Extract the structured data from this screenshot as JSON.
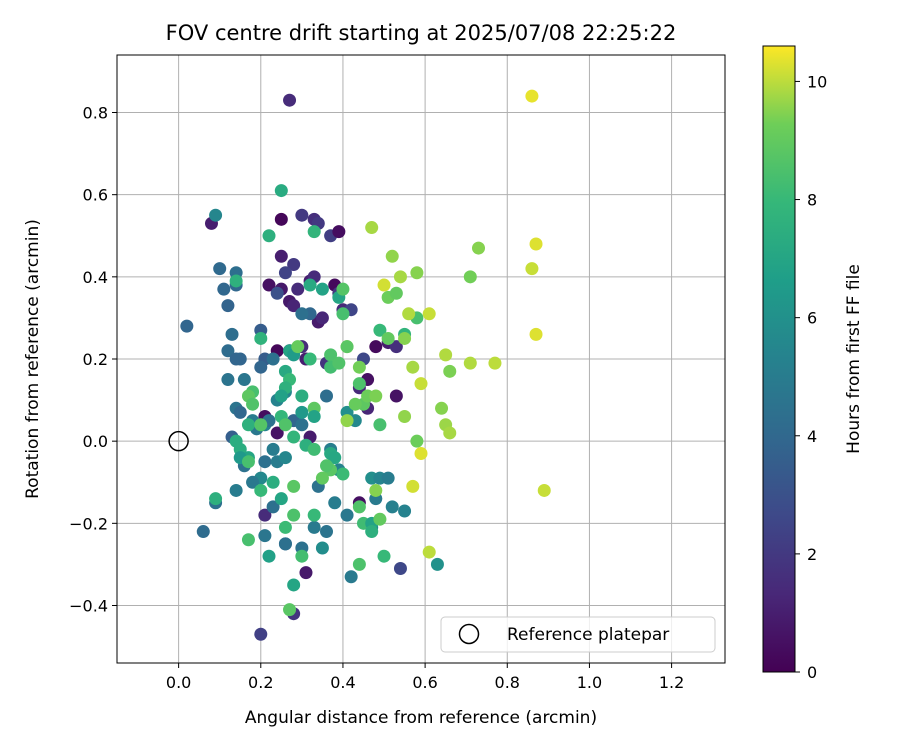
{
  "chart_data": {
    "type": "scatter",
    "title": "FOV centre drift starting at 2025/07/08 22:25:22",
    "xlabel": "Angular distance from reference (arcmin)",
    "ylabel": "Rotation from reference (arcmin)",
    "xlim": [
      -0.15,
      1.33
    ],
    "ylim": [
      -0.54,
      0.94
    ],
    "x_ticks": [
      0.0,
      0.2,
      0.4,
      0.6,
      0.8,
      1.0,
      1.2
    ],
    "x_tick_labels": [
      "0.0",
      "0.2",
      "0.4",
      "0.6",
      "0.8",
      "1.0",
      "1.2"
    ],
    "y_ticks": [
      -0.4,
      -0.2,
      0.0,
      0.2,
      0.4,
      0.6,
      0.8
    ],
    "y_tick_labels": [
      "−0.4",
      "−0.2",
      "0.0",
      "0.2",
      "0.4",
      "0.6",
      "0.8"
    ],
    "grid": true,
    "colormap": "viridis",
    "colorbar": {
      "label": "Hours from first FF file",
      "range": [
        0,
        10.6
      ],
      "ticks": [
        0,
        2,
        4,
        6,
        8,
        10
      ],
      "tick_labels": [
        "0",
        "2",
        "4",
        "6",
        "8",
        "10"
      ]
    },
    "legend": {
      "placement": "lower-right",
      "entries": [
        {
          "label": "Reference platepar",
          "marker": "open-circle"
        }
      ]
    },
    "reference_point": {
      "x": 0.0,
      "y": 0.0
    },
    "points": [
      [
        0.27,
        0.83,
        1.5
      ],
      [
        0.08,
        0.53,
        1.0
      ],
      [
        0.25,
        0.54,
        0.2
      ],
      [
        0.3,
        0.55,
        2.0
      ],
      [
        0.33,
        0.54,
        1.6
      ],
      [
        0.34,
        0.53,
        2.0
      ],
      [
        0.37,
        0.5,
        2.2
      ],
      [
        0.39,
        0.51,
        0.4
      ],
      [
        0.25,
        0.45,
        1.0
      ],
      [
        0.28,
        0.43,
        2.0
      ],
      [
        0.26,
        0.41,
        2.4
      ],
      [
        0.22,
        0.38,
        0.5
      ],
      [
        0.25,
        0.37,
        0.8
      ],
      [
        0.29,
        0.37,
        1.5
      ],
      [
        0.32,
        0.39,
        1.0
      ],
      [
        0.33,
        0.4,
        1.5
      ],
      [
        0.38,
        0.38,
        0.3
      ],
      [
        0.27,
        0.34,
        0.8
      ],
      [
        0.28,
        0.33,
        1.2
      ],
      [
        0.24,
        0.36,
        3.0
      ],
      [
        0.2,
        0.27,
        3.5
      ],
      [
        0.27,
        0.22,
        0.5
      ],
      [
        0.24,
        0.22,
        0.2
      ],
      [
        0.3,
        0.23,
        1.5
      ],
      [
        0.34,
        0.29,
        0.9
      ],
      [
        0.35,
        0.3,
        1.3
      ],
      [
        0.39,
        0.36,
        1.9
      ],
      [
        0.4,
        0.32,
        1.4
      ],
      [
        0.42,
        0.32,
        2.5
      ],
      [
        0.31,
        0.2,
        1.0
      ],
      [
        0.36,
        0.19,
        1.8
      ],
      [
        0.45,
        0.2,
        2.6
      ],
      [
        0.48,
        0.23,
        0.3
      ],
      [
        0.51,
        0.24,
        1.0
      ],
      [
        0.53,
        0.23,
        1.6
      ],
      [
        0.53,
        0.11,
        0.6
      ],
      [
        0.46,
        0.15,
        0.5
      ],
      [
        0.44,
        0.13,
        1.4
      ],
      [
        0.46,
        0.08,
        1.3
      ],
      [
        0.21,
        0.06,
        0.4
      ],
      [
        0.24,
        0.02,
        0.6
      ],
      [
        0.32,
        0.01,
        0.9
      ],
      [
        0.44,
        -0.15,
        0.5
      ],
      [
        0.21,
        -0.18,
        1.5
      ],
      [
        0.31,
        -0.32,
        0.8
      ],
      [
        0.28,
        -0.42,
        1.8
      ],
      [
        0.2,
        -0.47,
        2.3
      ],
      [
        0.54,
        -0.31,
        2.6
      ],
      [
        0.09,
        0.55,
        5.5
      ],
      [
        0.1,
        0.42,
        4.1
      ],
      [
        0.14,
        0.41,
        4.3
      ],
      [
        0.11,
        0.37,
        4.0
      ],
      [
        0.14,
        0.38,
        4.0
      ],
      [
        0.12,
        0.33,
        3.8
      ],
      [
        0.02,
        0.28,
        3.9
      ],
      [
        0.13,
        0.26,
        4.3
      ],
      [
        0.12,
        0.22,
        4.2
      ],
      [
        0.15,
        0.2,
        3.9
      ],
      [
        0.14,
        0.2,
        3.9
      ],
      [
        0.21,
        0.2,
        3.5
      ],
      [
        0.2,
        0.18,
        3.9
      ],
      [
        0.23,
        0.2,
        4.4
      ],
      [
        0.12,
        0.15,
        4.6
      ],
      [
        0.16,
        0.15,
        4.7
      ],
      [
        0.14,
        0.08,
        4.6
      ],
      [
        0.15,
        0.07,
        4.0
      ],
      [
        0.18,
        0.05,
        5.0
      ],
      [
        0.19,
        0.03,
        4.8
      ],
      [
        0.21,
        0.04,
        5.3
      ],
      [
        0.22,
        0.05,
        4.5
      ],
      [
        0.13,
        0.01,
        3.6
      ],
      [
        0.21,
        -0.05,
        4.4
      ],
      [
        0.16,
        -0.06,
        4.5
      ],
      [
        0.24,
        -0.05,
        5.0
      ],
      [
        0.26,
        -0.04,
        5.5
      ],
      [
        0.23,
        -0.02,
        5.0
      ],
      [
        0.28,
        0.05,
        3.9
      ],
      [
        0.3,
        0.04,
        4.5
      ],
      [
        0.24,
        0.1,
        5.3
      ],
      [
        0.26,
        0.12,
        5.5
      ],
      [
        0.2,
        -0.09,
        5.6
      ],
      [
        0.18,
        -0.1,
        4.8
      ],
      [
        0.14,
        -0.12,
        5.0
      ],
      [
        0.09,
        -0.15,
        4.4
      ],
      [
        0.06,
        -0.22,
        4.2
      ],
      [
        0.23,
        -0.16,
        4.4
      ],
      [
        0.21,
        -0.23,
        4.7
      ],
      [
        0.26,
        -0.25,
        3.8
      ],
      [
        0.3,
        -0.26,
        4.5
      ],
      [
        0.33,
        -0.21,
        4.9
      ],
      [
        0.36,
        -0.22,
        4.6
      ],
      [
        0.35,
        -0.26,
        5.8
      ],
      [
        0.42,
        -0.33,
        4.9
      ],
      [
        0.38,
        -0.15,
        5.0
      ],
      [
        0.41,
        -0.18,
        4.8
      ],
      [
        0.34,
        -0.11,
        4.5
      ],
      [
        0.39,
        -0.07,
        5.3
      ],
      [
        0.37,
        -0.02,
        5.1
      ],
      [
        0.36,
        0.11,
        4.3
      ],
      [
        0.32,
        0.31,
        4.0
      ],
      [
        0.3,
        0.31,
        4.4
      ],
      [
        0.41,
        0.07,
        5.9
      ],
      [
        0.43,
        0.05,
        5.6
      ],
      [
        0.47,
        -0.09,
        5.9
      ],
      [
        0.49,
        -0.09,
        5.4
      ],
      [
        0.51,
        -0.09,
        5.0
      ],
      [
        0.48,
        -0.14,
        4.9
      ],
      [
        0.52,
        -0.16,
        5.2
      ],
      [
        0.55,
        -0.17,
        5.3
      ],
      [
        0.47,
        -0.21,
        5.5
      ],
      [
        0.63,
        -0.3,
        6.0
      ],
      [
        0.26,
        -0.25,
        4.4
      ],
      [
        0.25,
        0.61,
        7.3
      ],
      [
        0.22,
        0.5,
        7.5
      ],
      [
        0.33,
        0.51,
        7.8
      ],
      [
        0.32,
        0.38,
        7.2
      ],
      [
        0.35,
        0.37,
        6.9
      ],
      [
        0.39,
        0.35,
        7.0
      ],
      [
        0.4,
        0.37,
        8.7
      ],
      [
        0.4,
        0.31,
        8.4
      ],
      [
        0.14,
        0.39,
        7.6
      ],
      [
        0.2,
        0.25,
        7.7
      ],
      [
        0.27,
        0.22,
        7.0
      ],
      [
        0.28,
        0.21,
        6.5
      ],
      [
        0.32,
        0.2,
        8.0
      ],
      [
        0.26,
        0.17,
        7.2
      ],
      [
        0.27,
        0.15,
        8.0
      ],
      [
        0.26,
        0.13,
        7.6
      ],
      [
        0.25,
        0.11,
        6.8
      ],
      [
        0.3,
        0.11,
        7.4
      ],
      [
        0.33,
        0.08,
        8.9
      ],
      [
        0.37,
        0.21,
        8.5
      ],
      [
        0.37,
        0.18,
        8.3
      ],
      [
        0.39,
        0.19,
        8.6
      ],
      [
        0.18,
        0.12,
        8.4
      ],
      [
        0.17,
        0.11,
        8.9
      ],
      [
        0.18,
        0.09,
        8.6
      ],
      [
        0.17,
        0.04,
        7.6
      ],
      [
        0.2,
        0.04,
        8.7
      ],
      [
        0.25,
        0.06,
        7.9
      ],
      [
        0.3,
        0.07,
        6.4
      ],
      [
        0.33,
        0.06,
        6.9
      ],
      [
        0.26,
        0.04,
        8.6
      ],
      [
        0.28,
        0.01,
        7.8
      ],
      [
        0.14,
        0.0,
        7.4
      ],
      [
        0.15,
        -0.02,
        7.4
      ],
      [
        0.17,
        -0.04,
        7.0
      ],
      [
        0.15,
        -0.04,
        6.4
      ],
      [
        0.17,
        -0.05,
        8.4
      ],
      [
        0.31,
        -0.01,
        7.5
      ],
      [
        0.33,
        -0.02,
        8.2
      ],
      [
        0.37,
        -0.03,
        7.2
      ],
      [
        0.38,
        -0.04,
        7.1
      ],
      [
        0.4,
        -0.08,
        8.1
      ],
      [
        0.37,
        -0.07,
        8.8
      ],
      [
        0.35,
        -0.09,
        9.0
      ],
      [
        0.36,
        -0.06,
        8.6
      ],
      [
        0.28,
        -0.11,
        8.8
      ],
      [
        0.2,
        -0.12,
        8.0
      ],
      [
        0.23,
        -0.1,
        7.4
      ],
      [
        0.25,
        -0.14,
        7.0
      ],
      [
        0.09,
        -0.14,
        7.5
      ],
      [
        0.26,
        -0.21,
        8.1
      ],
      [
        0.33,
        -0.18,
        8.0
      ],
      [
        0.28,
        -0.18,
        8.5
      ],
      [
        0.3,
        -0.28,
        8.3
      ],
      [
        0.28,
        -0.35,
        7.0
      ],
      [
        0.22,
        -0.28,
        6.8
      ],
      [
        0.17,
        -0.24,
        8.4
      ],
      [
        0.27,
        -0.41,
        8.8
      ],
      [
        0.44,
        -0.16,
        8.6
      ],
      [
        0.45,
        -0.2,
        8.2
      ],
      [
        0.47,
        -0.2,
        6.9
      ],
      [
        0.47,
        -0.22,
        7.5
      ],
      [
        0.5,
        -0.28,
        8.0
      ],
      [
        0.44,
        -0.3,
        8.5
      ],
      [
        0.48,
        -0.12,
        9.5
      ],
      [
        0.49,
        -0.19,
        9.0
      ],
      [
        0.45,
        0.09,
        8.9
      ],
      [
        0.43,
        0.09,
        9.1
      ],
      [
        0.46,
        0.11,
        9.2
      ],
      [
        0.48,
        0.11,
        9.4
      ],
      [
        0.44,
        0.14,
        8.5
      ],
      [
        0.49,
        0.04,
        8.4
      ],
      [
        0.49,
        0.27,
        8.0
      ],
      [
        0.51,
        0.25,
        9.0
      ],
      [
        0.51,
        0.35,
        9.2
      ],
      [
        0.53,
        0.36,
        9.0
      ],
      [
        0.55,
        0.26,
        7.8
      ],
      [
        0.55,
        0.25,
        9.5
      ],
      [
        0.44,
        0.18,
        9.3
      ],
      [
        0.54,
        0.4,
        9.8
      ],
      [
        0.58,
        0.41,
        9.5
      ],
      [
        0.58,
        0.3,
        8.4
      ],
      [
        0.41,
        0.23,
        9.9
      ],
      [
        0.41,
        0.23,
        8.8
      ],
      [
        0.29,
        0.23,
        9.1
      ],
      [
        0.47,
        0.52,
        9.8
      ],
      [
        0.5,
        0.38,
        10.2
      ],
      [
        0.52,
        0.45,
        9.6
      ],
      [
        0.56,
        0.31,
        9.9
      ],
      [
        0.61,
        0.31,
        10.1
      ],
      [
        0.57,
        0.18,
        9.8
      ],
      [
        0.59,
        0.14,
        10.1
      ],
      [
        0.65,
        0.21,
        9.9
      ],
      [
        0.66,
        0.17,
        9.4
      ],
      [
        0.55,
        0.06,
        9.6
      ],
      [
        0.64,
        0.08,
        9.5
      ],
      [
        0.65,
        0.04,
        9.7
      ],
      [
        0.66,
        0.02,
        9.8
      ],
      [
        0.58,
        0.0,
        9.2
      ],
      [
        0.59,
        -0.03,
        10.3
      ],
      [
        0.57,
        -0.11,
        10.2
      ],
      [
        0.61,
        -0.27,
        10.0
      ],
      [
        0.71,
        0.4,
        9.3
      ],
      [
        0.73,
        0.47,
        9.5
      ],
      [
        0.71,
        0.19,
        9.9
      ],
      [
        0.77,
        0.19,
        10.0
      ],
      [
        0.86,
        0.84,
        10.4
      ],
      [
        0.87,
        0.48,
        10.3
      ],
      [
        0.86,
        0.42,
        10.1
      ],
      [
        0.87,
        0.26,
        10.3
      ],
      [
        0.89,
        -0.12,
        10.1
      ],
      [
        0.41,
        0.05,
        9.6
      ]
    ]
  }
}
